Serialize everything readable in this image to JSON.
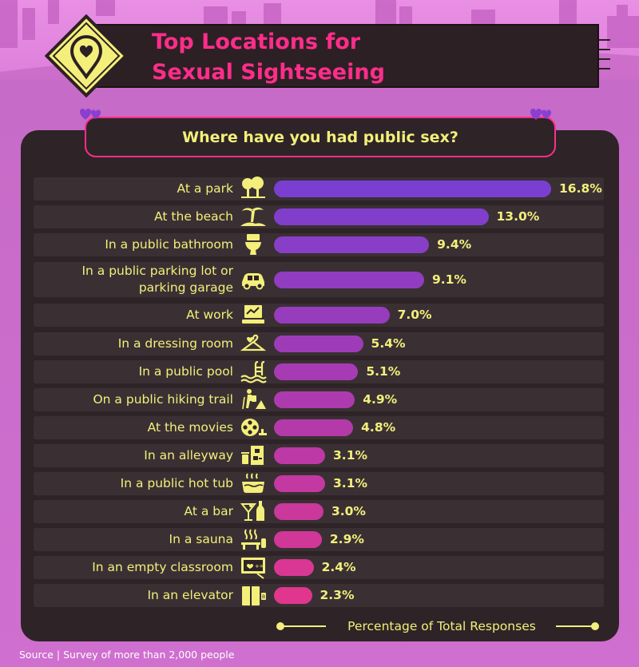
{
  "title": {
    "line1": "Top Locations for",
    "line2": "Sexual Sightseeing"
  },
  "subtitle": "Where have you had public sex?",
  "axis_title": "Percentage of Total Responses",
  "source": {
    "label": "Source",
    "text": "Survey of more than 2,000 people"
  },
  "colors": {
    "background": "#cf6fcf",
    "panel": "#2e2427",
    "title": "#ff2d8a",
    "text": "#f3ef7a",
    "bar_top": "#7a3fd0",
    "bar_bottom": "#e0368e"
  },
  "chart_data": {
    "type": "bar",
    "orientation": "horizontal",
    "title": "Where have you had public sex?",
    "xlabel": "Percentage of Total Responses",
    "unit": "%",
    "xlim": [
      0,
      16.8
    ],
    "grid": false,
    "categories": [
      "At a park",
      "At the beach",
      "In a public bathroom",
      "In a public parking lot or parking garage",
      "At work",
      "In a dressing room",
      "In a public pool",
      "On a public hiking trail",
      "At the movies",
      "In an alleyway",
      "In a public hot tub",
      "At a bar",
      "In a sauna",
      "In an empty classroom",
      "In an elevator"
    ],
    "label_lines": [
      [
        "At a park"
      ],
      [
        "At the beach"
      ],
      [
        "In a public bathroom"
      ],
      [
        "In a public parking lot or",
        "parking garage"
      ],
      [
        "At work"
      ],
      [
        "In a dressing room"
      ],
      [
        "In a public pool"
      ],
      [
        "On a public hiking trail"
      ],
      [
        "At the movies"
      ],
      [
        "In an alleyway"
      ],
      [
        "In a public hot tub"
      ],
      [
        "At a bar"
      ],
      [
        "In a sauna"
      ],
      [
        "In an empty classroom"
      ],
      [
        "In an elevator"
      ]
    ],
    "values": [
      16.8,
      13.0,
      9.4,
      9.1,
      7.0,
      5.4,
      5.1,
      4.9,
      4.8,
      3.1,
      3.1,
      3.0,
      2.9,
      2.4,
      2.3
    ],
    "value_labels": [
      "16.8%",
      "13.0%",
      "9.4%",
      "9.1%",
      "7.0%",
      "5.4%",
      "5.1%",
      "4.9%",
      "4.8%",
      "3.1%",
      "3.1%",
      "3.0%",
      "2.9%",
      "2.4%",
      "2.3%"
    ],
    "icons": [
      "trees-icon",
      "palm-tree-beach-icon",
      "toilet-icon",
      "car-icon",
      "computer-icon",
      "hanger-icon",
      "pool-ladder-icon",
      "hiker-icon",
      "film-reel-icon",
      "trash-can-alley-icon",
      "hot-tub-icon",
      "cocktail-bottle-icon",
      "sauna-icon",
      "chalkboard-icon",
      "elevator-icon"
    ]
  }
}
